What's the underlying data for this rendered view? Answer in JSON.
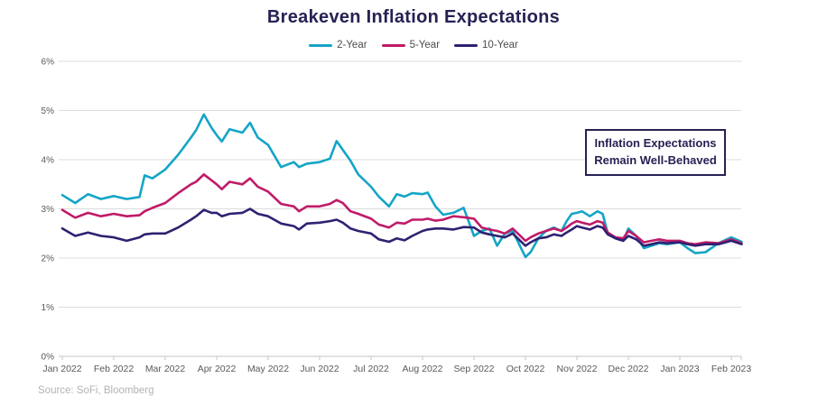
{
  "title": "Breakeven Inflation Expectations",
  "annotation": {
    "line1": "Inflation Expectations",
    "line2": "Remain Well-Behaved"
  },
  "source": "Source: SoFi, Bloomberg",
  "colors": {
    "accent_navy": "#262254",
    "grid": "#dcdcdc",
    "axis": "#c6c6c6",
    "tick_text": "#595959",
    "source_text": "#b3b3b3"
  },
  "chart_data": {
    "type": "line",
    "title": "Breakeven Inflation Expectations",
    "xlabel": "",
    "ylabel": "",
    "x_unit": "months since Jan 2022",
    "xlim": [
      -0.07,
      13.25
    ],
    "ylim": [
      0,
      6
    ],
    "grid": "horizontal",
    "legend_position": "top-center",
    "x_tick_positions": [
      0,
      1,
      2,
      3,
      4,
      5,
      6,
      7,
      8,
      9,
      10,
      11,
      12,
      13
    ],
    "x_tick_labels": [
      "Jan 2022",
      "Feb 2022",
      "Mar 2022",
      "Apr 2022",
      "May 2022",
      "Jun 2022",
      "Jul 2022",
      "Aug 2022",
      "Sep 2022",
      "Oct 2022",
      "Nov 2022",
      "Dec 2022",
      "Jan 2023",
      "Feb 2023"
    ],
    "y_tick_positions": [
      0,
      1,
      2,
      3,
      4,
      5,
      6
    ],
    "y_tick_labels": [
      "0%",
      "1%",
      "2%",
      "3%",
      "4%",
      "5%",
      "6%"
    ],
    "x": [
      0,
      0.25,
      0.5,
      0.75,
      1,
      1.25,
      1.5,
      1.6,
      1.75,
      2,
      2.25,
      2.5,
      2.6,
      2.75,
      2.9,
      3,
      3.1,
      3.25,
      3.5,
      3.65,
      3.8,
      4,
      4.25,
      4.5,
      4.6,
      4.75,
      5,
      5.2,
      5.33,
      5.45,
      5.6,
      5.75,
      6,
      6.15,
      6.35,
      6.5,
      6.65,
      6.8,
      7,
      7.1,
      7.25,
      7.4,
      7.6,
      7.8,
      8,
      8.15,
      8.3,
      8.45,
      8.6,
      8.75,
      9,
      9.1,
      9.25,
      9.4,
      9.55,
      9.7,
      9.8,
      9.9,
      10,
      10.1,
      10.25,
      10.4,
      10.5,
      10.6,
      10.75,
      10.9,
      11,
      11.15,
      11.3,
      11.45,
      11.6,
      11.75,
      12,
      12.15,
      12.3,
      12.5,
      12.75,
      13,
      13.2
    ],
    "series": [
      {
        "name": "2-Year",
        "color": "#14A5C6",
        "values": [
          3.28,
          3.12,
          3.3,
          3.2,
          3.26,
          3.2,
          3.24,
          3.68,
          3.62,
          3.8,
          4.1,
          4.45,
          4.6,
          4.92,
          4.65,
          4.5,
          4.37,
          4.62,
          4.55,
          4.75,
          4.45,
          4.3,
          3.85,
          3.95,
          3.85,
          3.92,
          3.95,
          4.02,
          4.38,
          4.2,
          3.98,
          3.7,
          3.45,
          3.25,
          3.05,
          3.3,
          3.25,
          3.32,
          3.3,
          3.33,
          3.05,
          2.88,
          2.92,
          3.02,
          2.45,
          2.55,
          2.6,
          2.25,
          2.5,
          2.55,
          2.02,
          2.12,
          2.4,
          2.55,
          2.62,
          2.55,
          2.75,
          2.9,
          2.92,
          2.95,
          2.85,
          2.95,
          2.9,
          2.5,
          2.4,
          2.35,
          2.6,
          2.45,
          2.2,
          2.25,
          2.3,
          2.28,
          2.32,
          2.2,
          2.1,
          2.12,
          2.3,
          2.42,
          2.33
        ]
      },
      {
        "name": "5-Year",
        "color": "#C01A68",
        "values": [
          2.98,
          2.82,
          2.92,
          2.85,
          2.9,
          2.85,
          2.87,
          2.95,
          3.02,
          3.12,
          3.32,
          3.5,
          3.55,
          3.7,
          3.58,
          3.5,
          3.4,
          3.55,
          3.5,
          3.62,
          3.45,
          3.35,
          3.1,
          3.05,
          2.95,
          3.05,
          3.05,
          3.1,
          3.18,
          3.12,
          2.95,
          2.9,
          2.8,
          2.68,
          2.62,
          2.72,
          2.7,
          2.78,
          2.78,
          2.8,
          2.76,
          2.78,
          2.85,
          2.83,
          2.8,
          2.62,
          2.58,
          2.55,
          2.5,
          2.6,
          2.35,
          2.42,
          2.5,
          2.55,
          2.6,
          2.55,
          2.62,
          2.7,
          2.75,
          2.72,
          2.68,
          2.75,
          2.72,
          2.52,
          2.42,
          2.4,
          2.55,
          2.45,
          2.32,
          2.35,
          2.38,
          2.35,
          2.35,
          2.3,
          2.28,
          2.32,
          2.3,
          2.38,
          2.3
        ]
      },
      {
        "name": "10-Year",
        "color": "#2F2172",
        "values": [
          2.6,
          2.45,
          2.52,
          2.45,
          2.42,
          2.35,
          2.42,
          2.48,
          2.5,
          2.5,
          2.62,
          2.78,
          2.85,
          2.98,
          2.92,
          2.92,
          2.85,
          2.9,
          2.92,
          3.0,
          2.9,
          2.85,
          2.7,
          2.65,
          2.58,
          2.7,
          2.72,
          2.75,
          2.78,
          2.72,
          2.6,
          2.55,
          2.5,
          2.38,
          2.33,
          2.4,
          2.36,
          2.45,
          2.55,
          2.58,
          2.6,
          2.6,
          2.58,
          2.63,
          2.62,
          2.52,
          2.48,
          2.45,
          2.42,
          2.5,
          2.25,
          2.32,
          2.4,
          2.42,
          2.48,
          2.45,
          2.52,
          2.58,
          2.65,
          2.62,
          2.58,
          2.65,
          2.62,
          2.48,
          2.4,
          2.35,
          2.45,
          2.38,
          2.25,
          2.28,
          2.32,
          2.3,
          2.32,
          2.28,
          2.25,
          2.28,
          2.28,
          2.35,
          2.28
        ]
      }
    ]
  }
}
